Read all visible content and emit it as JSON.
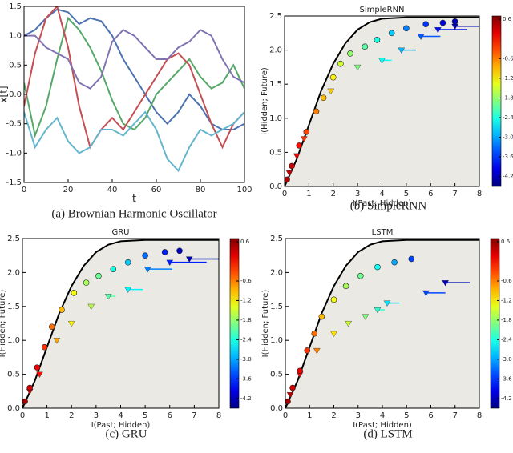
{
  "chart_data": [
    {
      "type": "line",
      "xlabel": "t",
      "ylabel": "x[t]",
      "caption": "(a)  Brownian Harmonic Oscillator",
      "xlim": [
        0,
        100
      ],
      "ylim": [
        -1.5,
        1.5
      ],
      "xticks": [
        0,
        20,
        40,
        60,
        80,
        100
      ],
      "yticks": [
        -1.5,
        {
          "value": -1,
          "label": "-1.0"
        },
        -0.5,
        {
          "value": 0,
          "label": "0.0"
        },
        0.5,
        {
          "value": 1,
          "label": "1.0"
        },
        1.5
      ],
      "x": [
        0,
        5,
        10,
        15,
        20,
        25,
        30,
        35,
        40,
        45,
        50,
        55,
        60,
        65,
        70,
        75,
        80,
        85,
        90,
        95,
        100
      ],
      "series": [
        {
          "color": "#4c72b0",
          "values": [
            1.0,
            1.1,
            1.3,
            1.45,
            1.4,
            1.2,
            1.3,
            1.25,
            1.0,
            0.6,
            0.3,
            0.0,
            -0.3,
            -0.5,
            -0.3,
            0.0,
            -0.2,
            -0.5,
            -0.6,
            -0.6,
            -0.5
          ]
        },
        {
          "color": "#55a868",
          "values": [
            0.2,
            -0.7,
            -0.2,
            0.6,
            1.3,
            1.1,
            0.8,
            0.4,
            -0.1,
            -0.5,
            -0.6,
            -0.4,
            0.0,
            0.2,
            0.4,
            0.6,
            0.3,
            0.1,
            0.2,
            0.5,
            0.1
          ]
        },
        {
          "color": "#c44e52",
          "values": [
            -0.2,
            0.7,
            1.3,
            1.5,
            0.8,
            -0.2,
            -0.9,
            -0.6,
            -0.4,
            -0.6,
            -0.3,
            0.0,
            0.3,
            0.6,
            0.7,
            0.5,
            0.0,
            -0.5,
            -0.9,
            -0.5,
            -0.3
          ]
        },
        {
          "color": "#8172b2",
          "values": [
            1.0,
            1.0,
            0.8,
            0.7,
            0.6,
            0.2,
            0.1,
            0.3,
            0.9,
            1.1,
            1.0,
            0.8,
            0.6,
            0.6,
            0.8,
            0.9,
            1.1,
            1.0,
            0.6,
            0.3,
            0.2
          ]
        },
        {
          "color": "#64b5cd",
          "values": [
            -0.3,
            -0.9,
            -0.6,
            -0.4,
            -0.8,
            -1.0,
            -0.9,
            -0.6,
            -0.6,
            -0.7,
            -0.5,
            -0.3,
            -0.6,
            -1.1,
            -1.3,
            -0.9,
            -0.6,
            -0.7,
            -0.6,
            -0.5,
            -0.3
          ]
        }
      ]
    },
    {
      "type": "scatter",
      "title": "SimpleRNN",
      "xlabel": "I(Past; Hidden)",
      "ylabel": "I(Hidden; Future)",
      "caption": "(b)  SimpleRNN",
      "xlim": [
        0,
        8
      ],
      "ylim": [
        0,
        2.5
      ],
      "xticks": [
        0,
        1,
        2,
        3,
        4,
        5,
        6,
        7,
        8
      ],
      "yticks": [
        {
          "value": 0,
          "label": "0.0"
        },
        0.5,
        {
          "value": 1,
          "label": "1.0"
        },
        1.5,
        {
          "value": 2,
          "label": "2.0"
        },
        2.5
      ],
      "bound": {
        "color": "#000000",
        "x": [
          0,
          0.5,
          1,
          1.5,
          2,
          2.5,
          3,
          3.5,
          4,
          5,
          6,
          8
        ],
        "y": [
          0,
          0.4,
          0.9,
          1.4,
          1.8,
          2.1,
          2.3,
          2.41,
          2.46,
          2.48,
          2.48,
          2.48
        ]
      },
      "circles": {
        "x": [
          0.1,
          0.3,
          0.6,
          0.9,
          1.3,
          1.6,
          2.0,
          2.3,
          2.7,
          3.3,
          3.8,
          4.4,
          5.0,
          5.8,
          6.5,
          7.0
        ],
        "y": [
          0.1,
          0.3,
          0.6,
          0.8,
          1.1,
          1.3,
          1.6,
          1.8,
          1.95,
          2.05,
          2.15,
          2.25,
          2.32,
          2.38,
          2.4,
          2.42
        ],
        "c": [
          0.5,
          0.3,
          0.0,
          -0.3,
          -0.6,
          -0.9,
          -1.2,
          -1.5,
          -1.8,
          -2.1,
          -2.4,
          -2.8,
          -3.2,
          -3.6,
          -4.0,
          -4.2
        ]
      },
      "triangles": {
        "x": [
          0.2,
          0.5,
          0.8,
          1.9,
          3.0,
          4.0,
          4.8,
          5.6,
          6.3,
          7.0
        ],
        "y": [
          0.2,
          0.45,
          0.7,
          1.4,
          1.75,
          1.85,
          2.0,
          2.2,
          2.3,
          2.35
        ],
        "c": [
          0.4,
          0.1,
          -0.2,
          -1.0,
          -1.9,
          -2.5,
          -2.9,
          -3.4,
          -3.8,
          -4.2
        ],
        "xerr": [
          0,
          0,
          0,
          0,
          0,
          0.4,
          0.6,
          0.8,
          1.2,
          1.0
        ]
      },
      "colorbar": {
        "colormap": "jet",
        "clim": [
          -4.5,
          0.7
        ],
        "ticks": [
          0.6,
          -0.6,
          -1.2,
          -1.8,
          -2.4,
          {
            "value": -3,
            "label": "-3.0"
          },
          -3.6,
          -4.2
        ]
      }
    },
    {
      "type": "scatter",
      "title": "GRU",
      "xlabel": "I(Past; Hidden)",
      "ylabel": "I(Hidden; Future)",
      "caption": "(c)  GRU",
      "xlim": [
        0,
        8
      ],
      "ylim": [
        0,
        2.5
      ],
      "xticks": [
        0,
        1,
        2,
        3,
        4,
        5,
        6,
        7,
        8
      ],
      "yticks": [
        {
          "value": 0,
          "label": "0.0"
        },
        0.5,
        {
          "value": 1,
          "label": "1.0"
        },
        1.5,
        {
          "value": 2,
          "label": "2.0"
        },
        2.5
      ],
      "bound": {
        "color": "#000000",
        "x": [
          0,
          0.5,
          1,
          1.5,
          2,
          2.5,
          3,
          3.5,
          4,
          5,
          6,
          8
        ],
        "y": [
          0,
          0.4,
          0.9,
          1.4,
          1.8,
          2.1,
          2.3,
          2.41,
          2.46,
          2.48,
          2.48,
          2.48
        ]
      },
      "circles": {
        "x": [
          0.1,
          0.3,
          0.6,
          0.9,
          1.2,
          1.6,
          2.1,
          2.6,
          3.1,
          3.7,
          4.3,
          5.0,
          5.8,
          6.4
        ],
        "y": [
          0.1,
          0.3,
          0.6,
          0.9,
          1.2,
          1.45,
          1.7,
          1.85,
          1.95,
          2.05,
          2.15,
          2.25,
          2.3,
          2.32
        ],
        "c": [
          0.5,
          0.3,
          0.1,
          -0.2,
          -0.5,
          -0.9,
          -1.3,
          -1.7,
          -2.0,
          -2.4,
          -2.8,
          -3.3,
          -3.7,
          -4.1
        ]
      },
      "triangles": {
        "x": [
          0.3,
          0.7,
          1.4,
          2.0,
          2.8,
          3.5,
          4.3,
          5.1,
          6.0,
          6.8
        ],
        "y": [
          0.25,
          0.5,
          1.0,
          1.25,
          1.5,
          1.65,
          1.75,
          2.05,
          2.15,
          2.2
        ],
        "c": [
          0.3,
          0.0,
          -0.8,
          -1.2,
          -1.6,
          -2.1,
          -2.6,
          -3.2,
          -3.7,
          -4.2
        ],
        "xerr": [
          0,
          0,
          0,
          0,
          0,
          0.3,
          0.6,
          1.0,
          1.5,
          1.2
        ]
      },
      "colorbar": {
        "colormap": "jet",
        "clim": [
          -4.5,
          0.7
        ],
        "ticks": [
          0.6,
          -0.6,
          -1.2,
          -1.8,
          -2.4,
          {
            "value": -3,
            "label": "-3.0"
          },
          -3.6,
          -4.2
        ]
      }
    },
    {
      "type": "scatter",
      "title": "LSTM",
      "xlabel": "I(Past; Hidden)",
      "ylabel": "I(Hidden; Future)",
      "caption": "(d)  LSTM",
      "xlim": [
        0,
        8
      ],
      "ylim": [
        0,
        2.5
      ],
      "xticks": [
        0,
        1,
        2,
        3,
        4,
        5,
        6,
        7,
        8
      ],
      "yticks": [
        {
          "value": 0,
          "label": "0.0"
        },
        0.5,
        {
          "value": 1,
          "label": "1.0"
        },
        1.5,
        {
          "value": 2,
          "label": "2.0"
        },
        2.5
      ],
      "bound": {
        "color": "#000000",
        "x": [
          0,
          0.5,
          1,
          1.5,
          2,
          2.5,
          3,
          3.5,
          4,
          5,
          6,
          8
        ],
        "y": [
          0,
          0.4,
          0.9,
          1.4,
          1.8,
          2.1,
          2.3,
          2.41,
          2.46,
          2.48,
          2.48,
          2.48
        ]
      },
      "circles": {
        "x": [
          0.1,
          0.3,
          0.6,
          0.9,
          1.2,
          1.5,
          2.0,
          2.5,
          3.1,
          3.8,
          4.5,
          5.2
        ],
        "y": [
          0.1,
          0.3,
          0.55,
          0.85,
          1.1,
          1.35,
          1.6,
          1.8,
          1.95,
          2.08,
          2.15,
          2.2
        ],
        "c": [
          0.5,
          0.3,
          0.1,
          -0.2,
          -0.5,
          -0.9,
          -1.3,
          -1.7,
          -2.0,
          -2.5,
          -3.0,
          -3.5
        ]
      },
      "triangles": {
        "x": [
          0.2,
          0.6,
          1.3,
          2.0,
          2.6,
          3.3,
          3.8,
          4.2,
          5.8,
          6.6
        ],
        "y": [
          0.2,
          0.5,
          0.85,
          1.1,
          1.25,
          1.35,
          1.45,
          1.55,
          1.7,
          1.85
        ],
        "c": [
          0.4,
          0.1,
          -0.6,
          -1.1,
          -1.5,
          -1.9,
          -2.3,
          -2.7,
          -3.5,
          -4.2
        ],
        "xerr": [
          0,
          0,
          0,
          0,
          0,
          0,
          0.3,
          0.5,
          0.8,
          1.0
        ]
      },
      "colorbar": {
        "colormap": "jet",
        "clim": [
          -4.5,
          0.7
        ],
        "ticks": [
          0.6,
          -0.6,
          -1.2,
          -1.8,
          -2.4,
          {
            "value": -3,
            "label": "-3.0"
          },
          -3.6,
          -4.2
        ]
      }
    }
  ]
}
